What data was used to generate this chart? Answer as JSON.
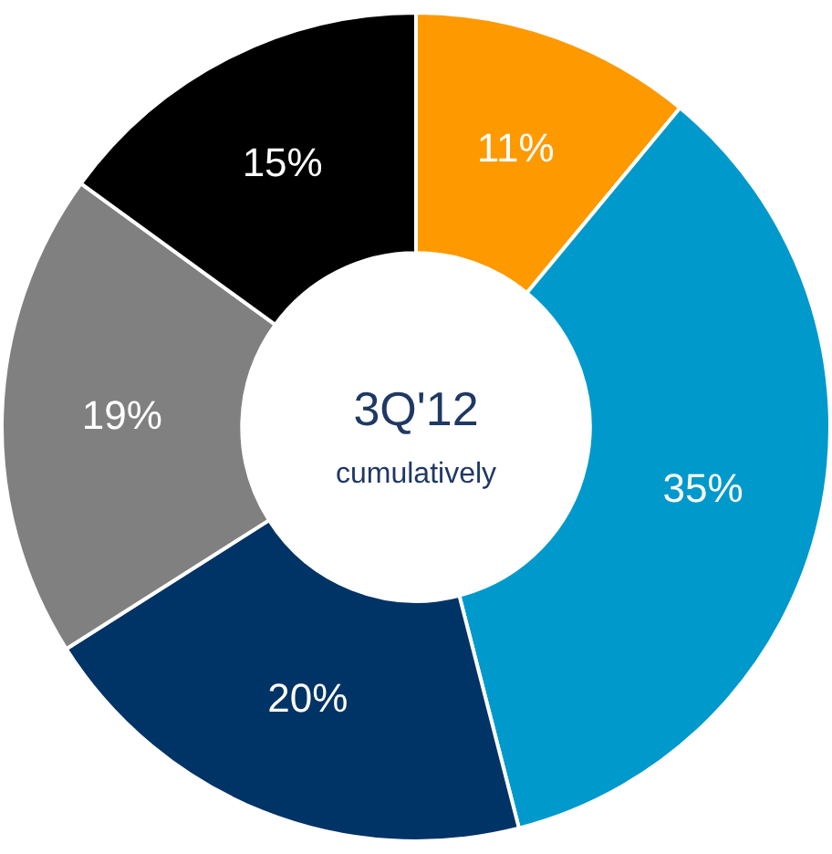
{
  "chart_data": {
    "type": "donut",
    "title": "3Q'12",
    "subtitle": "cumulatively",
    "categories": [
      null,
      null,
      null,
      null,
      null
    ],
    "values": [
      11,
      35,
      20,
      19,
      15
    ],
    "value_labels": [
      "11%",
      "35%",
      "20%",
      "19%",
      "15%"
    ],
    "colors": [
      "#ff9900",
      "#0099cc",
      "#003366",
      "#808080",
      "#000000"
    ],
    "legend": false
  }
}
